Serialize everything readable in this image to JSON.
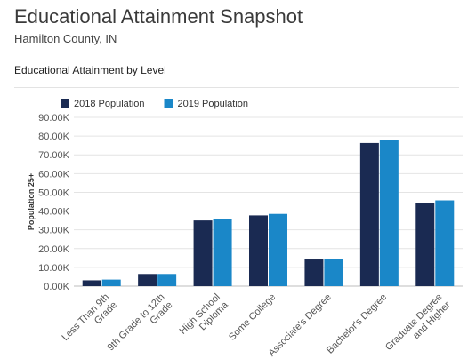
{
  "header": {
    "title": "Educational Attainment Snapshot",
    "subtitle": "Hamilton County, IN"
  },
  "chart_data": {
    "type": "bar",
    "title": "Educational Attainment by Level",
    "xlabel": "",
    "ylabel": "Population 25+",
    "ylim": [
      0,
      90000
    ],
    "y_ticks": [
      0,
      10000,
      20000,
      30000,
      40000,
      50000,
      60000,
      70000,
      80000,
      90000
    ],
    "y_tick_labels": [
      "0.00K",
      "10.00K",
      "20.00K",
      "30.00K",
      "40.00K",
      "50.00K",
      "60.00K",
      "70.00K",
      "80.00K",
      "90.00K"
    ],
    "grid": true,
    "legend_position": "top-left",
    "categories": [
      [
        "Less Than 9th",
        "Grade"
      ],
      [
        "9th Grade to 12th",
        "Grade"
      ],
      [
        "High School",
        "Diploma"
      ],
      [
        "Some College"
      ],
      [
        "Associate's Degree"
      ],
      [
        "Bachelor's Degree"
      ],
      [
        "Graduate Degree",
        "and Higher"
      ]
    ],
    "series": [
      {
        "name": "2018 Population",
        "color": "#1a2a52",
        "values": [
          3100,
          6500,
          35000,
          37700,
          14200,
          76300,
          44300
        ]
      },
      {
        "name": "2019 Population",
        "color": "#1a87c8",
        "values": [
          3500,
          6500,
          36000,
          38500,
          14500,
          78000,
          45700
        ]
      }
    ]
  }
}
